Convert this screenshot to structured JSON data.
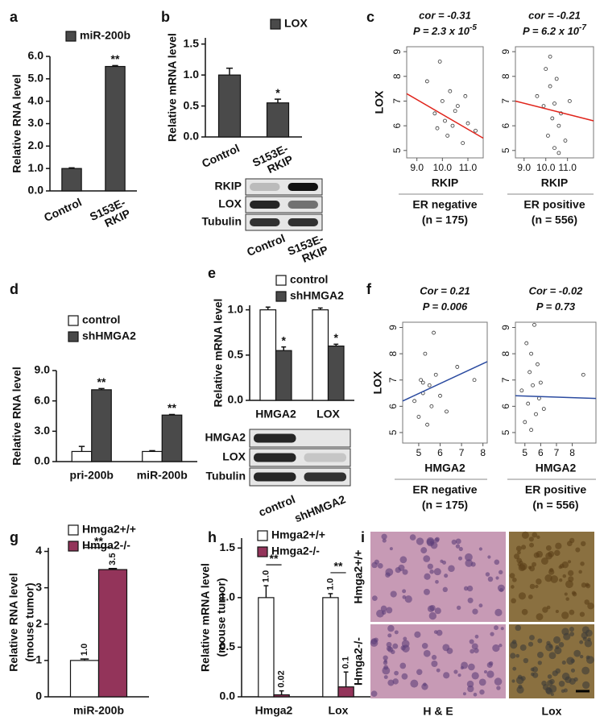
{
  "chart_data": [
    {
      "type": "bar",
      "label": "a",
      "ylabel": [
        "Relative RNA level"
      ],
      "categories": [
        "Control",
        "S153E-RKIP"
      ],
      "series": [
        {
          "name": "miR-200b",
          "color": "#4a4a4a",
          "values": [
            1.0,
            5.55
          ],
          "errors": [
            0.03,
            0.04
          ],
          "significance": [
            null,
            "**"
          ]
        }
      ],
      "ylim": [
        0,
        6
      ],
      "yticks": [
        {
          "value": 0,
          "label": "0.0"
        },
        {
          "value": 1,
          "label": "1.0"
        },
        {
          "value": 2,
          "label": "2.0"
        },
        {
          "value": 3,
          "label": "3.0"
        },
        {
          "value": 4,
          "label": "4.0"
        },
        {
          "value": 5,
          "label": "5.0"
        },
        {
          "value": 6,
          "label": "6.0"
        }
      ]
    },
    {
      "type": "bar",
      "label": "b",
      "ylabel": [
        "Relative mRNA level"
      ],
      "categories": [
        "Control",
        "S153E-RKIP"
      ],
      "series": [
        {
          "name": "LOX",
          "color": "#4a4a4a",
          "values": [
            1.0,
            0.55
          ],
          "errors": [
            0.11,
            0.06
          ],
          "significance": [
            null,
            "*"
          ]
        }
      ],
      "ylim": [
        0,
        1.6
      ],
      "yticks": [
        {
          "value": 0,
          "label": "0.0"
        },
        {
          "value": 0.5,
          "label": "0.5"
        },
        {
          "value": 1,
          "label": "1.0"
        },
        {
          "value": 1.5,
          "label": "1.5"
        }
      ],
      "blot": {
        "rows": [
          "RKIP",
          "LOX",
          "Tubulin"
        ],
        "lanes": [
          "Control",
          "S153E-RKIP"
        ]
      }
    },
    {
      "type": "scatter",
      "label": "c",
      "ylabel": [
        "LOX"
      ],
      "xlabel": "RKIP",
      "x": [
        9.4,
        9.7,
        9.9,
        10.0,
        10.1,
        10.2,
        10.3,
        10.4,
        10.6,
        10.8,
        11.0,
        11.3,
        9.8,
        10.5,
        10.9
      ],
      "y": [
        7.8,
        6.5,
        8.6,
        7.0,
        6.2,
        5.6,
        7.4,
        6.0,
        6.8,
        5.3,
        6.1,
        5.8,
        5.9,
        6.6,
        7.2
      ],
      "xlim": [
        8.6,
        11.6
      ],
      "ylim": [
        4.7,
        9.2
      ],
      "xticks": [
        {
          "value": 9,
          "label": "9.0"
        },
        {
          "value": 10,
          "label": "10.0"
        },
        {
          "value": 11,
          "label": "11.0"
        }
      ],
      "yticks": [
        5,
        6,
        7,
        8,
        9
      ],
      "fit": {
        "color": "#e0241b",
        "x": [
          8.6,
          11.6
        ],
        "y": [
          7.3,
          5.5
        ]
      },
      "stats": [
        "cor = -0.31",
        "P = 2.3 x 10"
      ],
      "stats_exp": "-5",
      "group": [
        "ER negative",
        "(n = 175)"
      ]
    },
    {
      "type": "scatter",
      "xlabel": "RKIP",
      "x": [
        9.6,
        9.9,
        10.0,
        10.1,
        10.2,
        10.3,
        10.4,
        10.4,
        10.5,
        10.6,
        10.7,
        10.9,
        11.1,
        10.2,
        10.6
      ],
      "y": [
        7.2,
        6.8,
        8.3,
        5.6,
        7.6,
        6.3,
        6.9,
        5.1,
        7.9,
        6.0,
        6.5,
        5.4,
        7.0,
        8.8,
        4.9
      ],
      "xlim": [
        8.6,
        12.2
      ],
      "ylim": [
        4.7,
        9.2
      ],
      "xticks": [
        {
          "value": 9,
          "label": "9.0"
        },
        {
          "value": 10,
          "label": "10.0"
        },
        {
          "value": 11,
          "label": "11.0"
        }
      ],
      "yticks": [
        5,
        6,
        7,
        8,
        9
      ],
      "fit": {
        "color": "#e0241b",
        "x": [
          8.6,
          12.2
        ],
        "y": [
          7.0,
          6.2
        ]
      },
      "stats": [
        "cor = -0.21",
        "P = 6.2 x 10"
      ],
      "stats_exp": "-7",
      "group": [
        "ER positive",
        "(n = 556)"
      ]
    },
    {
      "type": "bar",
      "label": "d",
      "ylabel": [
        "Relative RNA level"
      ],
      "categories": [
        "pri-200b",
        "miR-200b"
      ],
      "series": [
        {
          "name": "control",
          "color": "#ffffff",
          "values": [
            1.0,
            1.0
          ],
          "errors": [
            0.5,
            0.08
          ]
        },
        {
          "name": "shHMGA2",
          "color": "#4a4a4a",
          "values": [
            7.1,
            4.6
          ],
          "errors": [
            0.12,
            0.06
          ],
          "significance": [
            "**",
            "**"
          ]
        }
      ],
      "ylim": [
        0,
        9
      ],
      "yticks": [
        {
          "value": 0,
          "label": "0.0"
        },
        {
          "value": 3,
          "label": "3.0"
        },
        {
          "value": 6,
          "label": "6.0"
        },
        {
          "value": 9,
          "label": "9.0"
        }
      ]
    },
    {
      "type": "bar",
      "label": "e",
      "ylabel": [
        "Relative mRNA level"
      ],
      "categories": [
        "HMGA2",
        "LOX"
      ],
      "series": [
        {
          "name": "control",
          "color": "#ffffff",
          "values": [
            1.0,
            1.0
          ],
          "errors": [
            0.03,
            0.02
          ]
        },
        {
          "name": "shHMGA2",
          "color": "#4a4a4a",
          "values": [
            0.55,
            0.6
          ],
          "errors": [
            0.04,
            0.02
          ],
          "significance": [
            "*",
            "*"
          ]
        }
      ],
      "ylim": [
        0,
        1.05
      ],
      "yticks": [
        {
          "value": 0,
          "label": "0.0"
        },
        {
          "value": 0.5,
          "label": "0.5"
        },
        {
          "value": 1,
          "label": "1.0"
        }
      ],
      "blot": {
        "rows": [
          "HMGA2",
          "LOX",
          "Tubulin"
        ],
        "lanes": [
          "control",
          "shHMGA2"
        ]
      }
    },
    {
      "type": "scatter",
      "label": "f",
      "ylabel": [
        "LOX"
      ],
      "xlabel": "HMGA2",
      "x": [
        4.8,
        5.0,
        5.1,
        5.2,
        5.3,
        5.4,
        5.5,
        5.6,
        5.8,
        6.0,
        6.3,
        6.8,
        5.2,
        5.7,
        7.6
      ],
      "y": [
        6.2,
        5.6,
        7.0,
        6.5,
        8.0,
        5.3,
        6.8,
        6.0,
        7.2,
        6.4,
        5.8,
        7.5,
        6.9,
        8.8,
        7.0
      ],
      "xlim": [
        4.25,
        8.2
      ],
      "ylim": [
        4.6,
        9.2
      ],
      "xticks": [
        5,
        6,
        7,
        8
      ],
      "yticks": [
        5,
        6,
        7,
        8,
        9
      ],
      "fit": {
        "color": "#2b4ba0",
        "x": [
          4.25,
          8.2
        ],
        "y": [
          6.2,
          7.7
        ]
      },
      "stats": [
        "Cor = 0.21",
        "P = 0.006"
      ],
      "group": [
        "ER negative",
        "(n = 175)"
      ]
    },
    {
      "type": "scatter",
      "xlabel": "HMGA2",
      "x": [
        4.8,
        5.0,
        5.1,
        5.2,
        5.3,
        5.4,
        5.5,
        5.6,
        5.7,
        5.8,
        5.9,
        6.0,
        6.2,
        5.4,
        8.7
      ],
      "y": [
        6.6,
        5.4,
        8.4,
        6.1,
        7.3,
        5.1,
        6.8,
        9.1,
        5.7,
        7.6,
        6.3,
        6.9,
        5.9,
        8.0,
        7.2
      ],
      "xlim": [
        4.4,
        9.5
      ],
      "ylim": [
        4.6,
        9.2
      ],
      "xticks": [
        5,
        6,
        7,
        8
      ],
      "yticks": [
        5,
        6,
        7,
        8,
        9
      ],
      "fit": {
        "color": "#2b4ba0",
        "x": [
          4.4,
          9.5
        ],
        "y": [
          6.4,
          6.3
        ]
      },
      "stats": [
        "Cor = -0.02",
        "P = 0.73"
      ],
      "group": [
        "ER positive",
        "(n = 556)"
      ]
    },
    {
      "type": "bar",
      "label": "g",
      "ylabel": [
        "Relative RNA level",
        "(mouse tumor)"
      ],
      "categories": [
        "miR-200b"
      ],
      "series": [
        {
          "name": "Hmga2+/+",
          "color": "#ffffff",
          "values": [
            1.0
          ],
          "errors": [
            0.04
          ],
          "value_labels": [
            "1.0"
          ]
        },
        {
          "name": "Hmga2-/-",
          "color": "#93345a",
          "values": [
            3.5
          ],
          "errors": [
            0.03
          ],
          "value_labels": [
            "3.5"
          ]
        }
      ],
      "comparisons": [
        "**"
      ],
      "ylim": [
        0,
        4.1
      ],
      "yticks": [
        0,
        1,
        2,
        3,
        4
      ]
    },
    {
      "type": "bar",
      "label": "h",
      "ylabel": [
        "Relative mRNA level",
        "(mouse tumor)"
      ],
      "categories": [
        "Hmga2",
        "Lox"
      ],
      "series": [
        {
          "name": "Hmga2+/+",
          "color": "#ffffff",
          "values": [
            1.0,
            1.0
          ],
          "errors": [
            0.12,
            0.04
          ],
          "value_labels": [
            "1.0",
            "1.0"
          ]
        },
        {
          "name": "Hmga2-/-",
          "color": "#93345a",
          "values": [
            0.02,
            0.1
          ],
          "errors": [
            0.04,
            0.15
          ],
          "value_labels": [
            "0.02",
            "0.1"
          ]
        }
      ],
      "comparisons": [
        "**",
        "**"
      ],
      "ylim": [
        0,
        1.6
      ],
      "yticks": [
        {
          "value": 0,
          "label": "0.0"
        },
        {
          "value": 0.5,
          "label": "0.5"
        },
        {
          "value": 1,
          "label": "1.0"
        },
        {
          "value": 1.5,
          "label": "1.5"
        }
      ]
    }
  ],
  "panel_i": {
    "label": "i",
    "rows": [
      "Hmga2+/+",
      "Hmga2-/-"
    ],
    "columns": [
      "H & E",
      "Lox"
    ]
  }
}
